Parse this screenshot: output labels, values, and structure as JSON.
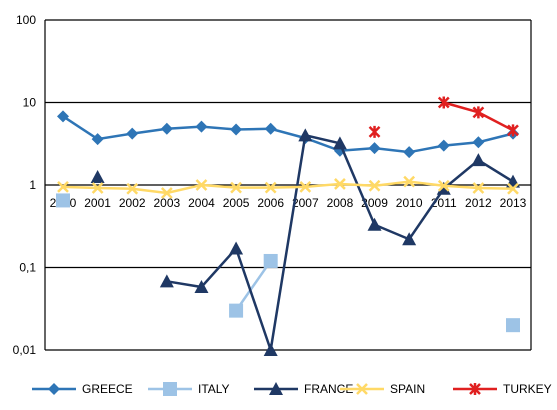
{
  "chart_data": {
    "type": "line",
    "yscale": "log",
    "ylim": [
      0.01,
      100
    ],
    "ytick_labels": [
      "100",
      "10",
      "1",
      "0,1",
      "0,01"
    ],
    "yticks": [
      100,
      10,
      1,
      0.1,
      0.01
    ],
    "categories": [
      "2000",
      "2001",
      "2002",
      "2003",
      "2004",
      "2005",
      "2006",
      "2007",
      "2008",
      "2009",
      "2010",
      "2011",
      "2012",
      "2013"
    ],
    "grid": "horizontal",
    "legend_position": "bottom",
    "series": [
      {
        "name": "GREECE",
        "color": "#2e75b6",
        "marker": "diamond",
        "values": [
          6.8,
          3.6,
          4.2,
          4.8,
          5.1,
          4.7,
          4.8,
          3.7,
          2.6,
          2.8,
          2.5,
          3.0,
          3.3,
          4.2
        ]
      },
      {
        "name": "ITALY",
        "color": "#9dc3e6",
        "marker": "square",
        "values": [
          0.65,
          null,
          null,
          null,
          null,
          0.03,
          0.12,
          null,
          null,
          null,
          null,
          null,
          null,
          0.02
        ]
      },
      {
        "name": "FRANCE",
        "color": "#1f3864",
        "marker": "triangle",
        "values": [
          null,
          1.25,
          null,
          0.068,
          0.058,
          0.17,
          0.01,
          4.0,
          3.2,
          0.33,
          0.22,
          0.9,
          2.0,
          1.1
        ]
      },
      {
        "name": "SPAIN",
        "color": "#ffd966",
        "marker": "x",
        "values": [
          0.95,
          0.92,
          0.9,
          0.8,
          1.0,
          0.93,
          0.93,
          0.95,
          1.03,
          0.98,
          1.1,
          0.98,
          0.92,
          0.9
        ]
      },
      {
        "name": "TURKEY",
        "color": "#e02020",
        "marker": "star",
        "values": [
          null,
          null,
          null,
          null,
          null,
          null,
          null,
          null,
          null,
          4.4,
          null,
          10.0,
          7.6,
          4.6
        ]
      }
    ]
  }
}
